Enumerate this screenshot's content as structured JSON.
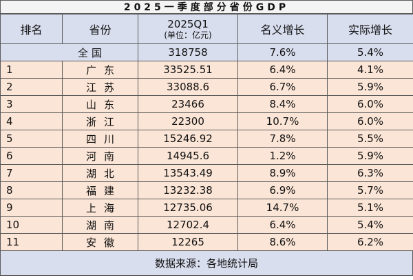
{
  "title": "2025一季度部分省份GDP",
  "headers": {
    "rank": "排名",
    "province": "省份",
    "gdp_main": "2025Q1",
    "gdp_unit": "(单位：亿元)",
    "nominal": "名义增长",
    "real": "实际增长"
  },
  "national": {
    "name_chars": [
      "全",
      "国"
    ],
    "gdp": "318758",
    "nominal": "7.6%",
    "real": "5.4%"
  },
  "rows": [
    {
      "rank": "1",
      "name_chars": [
        "广",
        "东"
      ],
      "gdp": "33525.51",
      "nominal": "6.4%",
      "real": "4.1%"
    },
    {
      "rank": "2",
      "name_chars": [
        "江",
        "苏"
      ],
      "gdp": "33088.6",
      "nominal": "6.7%",
      "real": "5.9%"
    },
    {
      "rank": "3",
      "name_chars": [
        "山",
        "东"
      ],
      "gdp": "23466",
      "nominal": "8.4%",
      "real": "6.0%"
    },
    {
      "rank": "4",
      "name_chars": [
        "浙",
        "江"
      ],
      "gdp": "22300",
      "nominal": "10.7%",
      "real": "6.0%"
    },
    {
      "rank": "5",
      "name_chars": [
        "四",
        "川"
      ],
      "gdp": "15246.92",
      "nominal": "7.8%",
      "real": "5.5%"
    },
    {
      "rank": "6",
      "name_chars": [
        "河",
        "南"
      ],
      "gdp": "14945.6",
      "nominal": "1.2%",
      "real": "5.9%"
    },
    {
      "rank": "7",
      "name_chars": [
        "湖",
        "北"
      ],
      "gdp": "13543.49",
      "nominal": "8.9%",
      "real": "6.3%"
    },
    {
      "rank": "8",
      "name_chars": [
        "福",
        "建"
      ],
      "gdp": "13232.38",
      "nominal": "6.9%",
      "real": "5.7%"
    },
    {
      "rank": "9",
      "name_chars": [
        "上",
        "海"
      ],
      "gdp": "12735.06",
      "nominal": "14.7%",
      "real": "5.1%"
    },
    {
      "rank": "10",
      "name_chars": [
        "湖",
        "南"
      ],
      "gdp": "12702.4",
      "nominal": "6.4%",
      "real": "5.4%"
    },
    {
      "rank": "11",
      "name_chars": [
        "安",
        "徽"
      ],
      "gdp": "12265",
      "nominal": "8.6%",
      "real": "6.2%"
    }
  ],
  "footer": "数据来源：各地统计局"
}
